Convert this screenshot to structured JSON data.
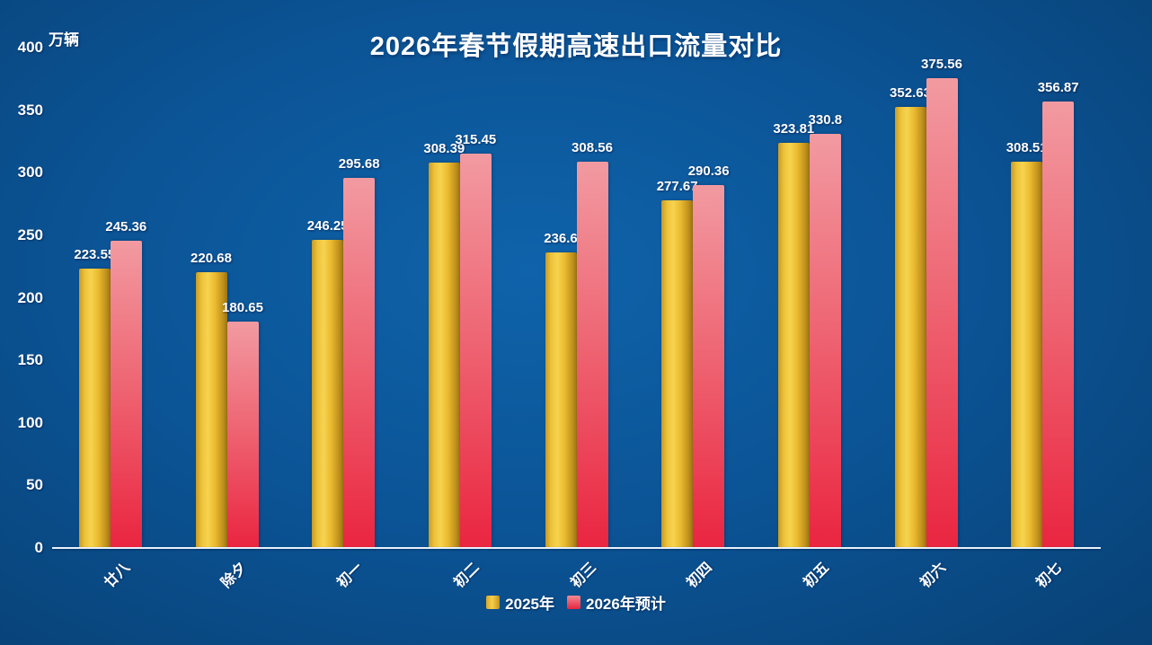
{
  "chart_data": {
    "type": "bar",
    "title": "2026年春节假期高速出口流量对比",
    "y_unit": "万辆",
    "xlabel": "",
    "ylabel": "万辆",
    "categories": [
      "廿八",
      "除夕",
      "初一",
      "初二",
      "初三",
      "初四",
      "初五",
      "初六",
      "初七"
    ],
    "series": [
      {
        "name": "2025年",
        "color": "#f0c23c",
        "values": [
          223.55,
          220.68,
          246.25,
          308.39,
          236.6,
          277.67,
          323.81,
          352.63,
          308.51
        ]
      },
      {
        "name": "2026年预计",
        "color": "#ec2d45",
        "values": [
          245.36,
          180.65,
          295.68,
          315.45,
          308.56,
          290.36,
          330.8,
          375.56,
          356.87
        ]
      }
    ],
    "ylim": [
      0,
      400
    ],
    "y_ticks": [
      0,
      50,
      100,
      150,
      200,
      250,
      300,
      350,
      400
    ],
    "grid": false,
    "legend_position": "bottom",
    "x_label_rotation": -45,
    "background_color": "#0b5496",
    "text_color": "#ffffff"
  }
}
